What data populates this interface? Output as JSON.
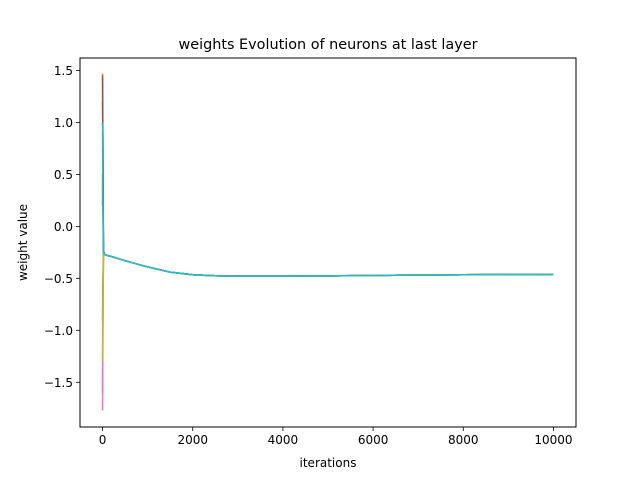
{
  "chart_data": {
    "type": "line",
    "title": "weights Evolution of neurons at last layer",
    "xlabel": "iterations",
    "ylabel": "weight value",
    "xlim": [
      -500,
      10500
    ],
    "ylim": [
      -1.93,
      1.62
    ],
    "xticks": [
      0,
      2000,
      4000,
      6000,
      8000,
      10000
    ],
    "xtick_labels": [
      "0",
      "2000",
      "4000",
      "6000",
      "8000",
      "10000"
    ],
    "yticks": [
      1.5,
      1.0,
      0.5,
      0.0,
      -0.5,
      -1.0,
      -1.5
    ],
    "ytick_labels": [
      "1.5",
      "1.0",
      "0.5",
      "0.0",
      "−0.5",
      "−1.0",
      "−1.5"
    ],
    "grid": false,
    "series": [
      {
        "color": "#1f77b4",
        "x": [
          0,
          5,
          20,
          50,
          100,
          200,
          500,
          1000,
          1500,
          2000,
          2500,
          3000,
          4000,
          5000,
          6000,
          7000,
          8000,
          9000,
          10000
        ],
        "y": [
          0.2,
          0.6,
          -0.25,
          -0.27,
          -0.28,
          -0.29,
          -0.33,
          -0.39,
          -0.44,
          -0.465,
          -0.475,
          -0.478,
          -0.479,
          -0.476,
          -0.472,
          -0.468,
          -0.465,
          -0.463,
          -0.462
        ]
      },
      {
        "color": "#ff7f0e",
        "x": [
          0,
          5,
          20,
          50,
          100,
          200,
          500,
          1000,
          1500,
          2000,
          2500,
          3000,
          4000,
          5000,
          6000,
          7000,
          8000,
          9000,
          10000
        ],
        "y": [
          1.47,
          1.1,
          -0.24,
          -0.27,
          -0.28,
          -0.29,
          -0.33,
          -0.39,
          -0.44,
          -0.465,
          -0.475,
          -0.478,
          -0.479,
          -0.476,
          -0.472,
          -0.468,
          -0.465,
          -0.463,
          -0.462
        ]
      },
      {
        "color": "#2ca02c",
        "x": [
          0,
          5,
          20,
          50,
          100,
          200,
          500,
          1000,
          1500,
          2000,
          2500,
          3000,
          4000,
          5000,
          6000,
          7000,
          8000,
          9000,
          10000
        ],
        "y": [
          -0.9,
          -0.6,
          -0.26,
          -0.27,
          -0.28,
          -0.29,
          -0.33,
          -0.39,
          -0.44,
          -0.465,
          -0.475,
          -0.478,
          -0.479,
          -0.476,
          -0.472,
          -0.468,
          -0.465,
          -0.463,
          -0.462
        ]
      },
      {
        "color": "#d62728",
        "x": [
          0,
          5,
          20,
          50,
          100,
          200,
          500,
          1000,
          1500,
          2000,
          2500,
          3000,
          4000,
          5000,
          6000,
          7000,
          8000,
          9000,
          10000
        ],
        "y": [
          1.2,
          0.9,
          -0.24,
          -0.27,
          -0.28,
          -0.29,
          -0.33,
          -0.39,
          -0.44,
          -0.465,
          -0.475,
          -0.478,
          -0.479,
          -0.476,
          -0.472,
          -0.468,
          -0.465,
          -0.463,
          -0.462
        ]
      },
      {
        "color": "#9467bd",
        "x": [
          0,
          5,
          20,
          50,
          100,
          200,
          500,
          1000,
          1500,
          2000,
          2500,
          3000,
          4000,
          5000,
          6000,
          7000,
          8000,
          9000,
          10000
        ],
        "y": [
          -1.6,
          -1.0,
          -0.26,
          -0.27,
          -0.28,
          -0.29,
          -0.33,
          -0.39,
          -0.44,
          -0.465,
          -0.475,
          -0.478,
          -0.479,
          -0.476,
          -0.472,
          -0.468,
          -0.465,
          -0.463,
          -0.462
        ]
      },
      {
        "color": "#8c564b",
        "x": [
          0,
          5,
          20,
          50,
          100,
          200,
          500,
          1000,
          1500,
          2000,
          2500,
          3000,
          4000,
          5000,
          6000,
          7000,
          8000,
          9000,
          10000
        ],
        "y": [
          1.45,
          1.0,
          -0.24,
          -0.27,
          -0.28,
          -0.29,
          -0.33,
          -0.39,
          -0.44,
          -0.465,
          -0.475,
          -0.478,
          -0.479,
          -0.476,
          -0.472,
          -0.468,
          -0.465,
          -0.463,
          -0.462
        ]
      },
      {
        "color": "#e377c2",
        "x": [
          0,
          5,
          20,
          50,
          100,
          200,
          500,
          1000,
          1500,
          2000,
          2500,
          3000,
          4000,
          5000,
          6000,
          7000,
          8000,
          9000,
          10000
        ],
        "y": [
          -1.77,
          -1.3,
          -0.26,
          -0.27,
          -0.28,
          -0.29,
          -0.33,
          -0.39,
          -0.44,
          -0.465,
          -0.475,
          -0.478,
          -0.479,
          -0.476,
          -0.472,
          -0.468,
          -0.465,
          -0.463,
          -0.462
        ]
      },
      {
        "color": "#7f7f7f",
        "x": [
          0,
          5,
          20,
          50,
          100,
          200,
          500,
          1000,
          1500,
          2000,
          2500,
          3000,
          4000,
          5000,
          6000,
          7000,
          8000,
          9000,
          10000
        ],
        "y": [
          0.5,
          0.3,
          -0.25,
          -0.27,
          -0.28,
          -0.29,
          -0.33,
          -0.39,
          -0.44,
          -0.465,
          -0.475,
          -0.478,
          -0.479,
          -0.476,
          -0.472,
          -0.468,
          -0.465,
          -0.463,
          -0.462
        ]
      },
      {
        "color": "#bcbd22",
        "x": [
          0,
          5,
          20,
          50,
          100,
          200,
          500,
          1000,
          1500,
          2000,
          2500,
          3000,
          4000,
          5000,
          6000,
          7000,
          8000,
          9000,
          10000
        ],
        "y": [
          -1.3,
          -0.8,
          -0.26,
          -0.27,
          -0.28,
          -0.29,
          -0.33,
          -0.39,
          -0.44,
          -0.465,
          -0.475,
          -0.478,
          -0.479,
          -0.476,
          -0.472,
          -0.468,
          -0.465,
          -0.463,
          -0.462
        ]
      },
      {
        "color": "#17becf",
        "x": [
          0,
          5,
          20,
          50,
          100,
          200,
          500,
          1000,
          1500,
          2000,
          2500,
          3000,
          4000,
          5000,
          6000,
          7000,
          8000,
          9000,
          10000
        ],
        "y": [
          1.0,
          0.4,
          -0.25,
          -0.27,
          -0.28,
          -0.29,
          -0.33,
          -0.39,
          -0.44,
          -0.465,
          -0.475,
          -0.478,
          -0.479,
          -0.476,
          -0.472,
          -0.468,
          -0.465,
          -0.463,
          -0.462
        ]
      }
    ]
  }
}
